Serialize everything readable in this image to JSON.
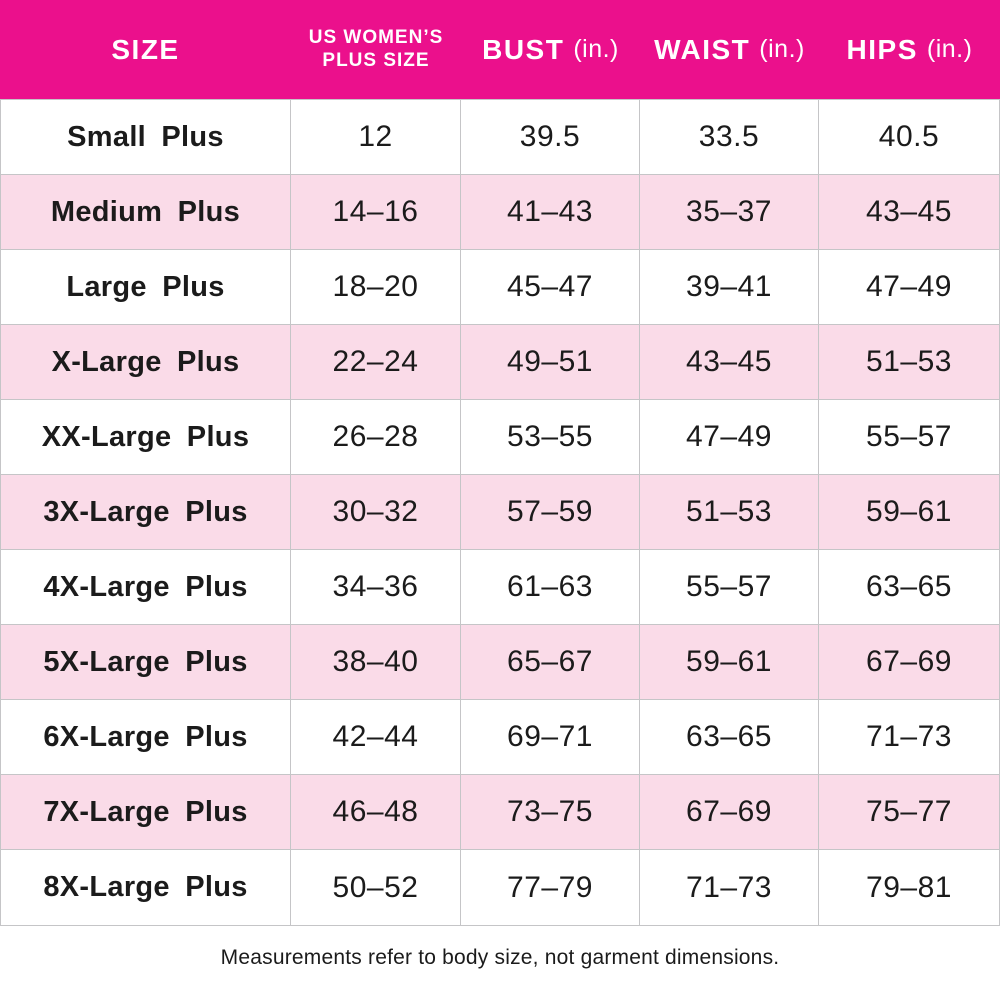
{
  "chart_data": {
    "type": "table",
    "columns": [
      {
        "title": "SIZE",
        "unit": ""
      },
      {
        "title": "US WOMEN’S PLUS SIZE",
        "unit": ""
      },
      {
        "title": "BUST",
        "unit": "(in.)"
      },
      {
        "title": "WAIST",
        "unit": "(in.)"
      },
      {
        "title": "HIPS",
        "unit": "(in.)"
      }
    ],
    "rows": [
      {
        "size": "Small Plus",
        "plus_size": "12",
        "bust": "39.5",
        "waist": "33.5",
        "hips": "40.5"
      },
      {
        "size": "Medium Plus",
        "plus_size": "14–16",
        "bust": "41–43",
        "waist": "35–37",
        "hips": "43–45"
      },
      {
        "size": "Large Plus",
        "plus_size": "18–20",
        "bust": "45–47",
        "waist": "39–41",
        "hips": "47–49"
      },
      {
        "size": "X-Large Plus",
        "plus_size": "22–24",
        "bust": "49–51",
        "waist": "43–45",
        "hips": "51–53"
      },
      {
        "size": "XX-Large Plus",
        "plus_size": "26–28",
        "bust": "53–55",
        "waist": "47–49",
        "hips": "55–57"
      },
      {
        "size": "3X-Large Plus",
        "plus_size": "30–32",
        "bust": "57–59",
        "waist": "51–53",
        "hips": "59–61"
      },
      {
        "size": "4X-Large Plus",
        "plus_size": "34–36",
        "bust": "61–63",
        "waist": "55–57",
        "hips": "63–65"
      },
      {
        "size": "5X-Large Plus",
        "plus_size": "38–40",
        "bust": "65–67",
        "waist": "59–61",
        "hips": "67–69"
      },
      {
        "size": "6X-Large Plus",
        "plus_size": "42–44",
        "bust": "69–71",
        "waist": "63–65",
        "hips": "71–73"
      },
      {
        "size": "7X-Large Plus",
        "plus_size": "46–48",
        "bust": "73–75",
        "waist": "67–69",
        "hips": "75–77"
      },
      {
        "size": "8X-Large Plus",
        "plus_size": "50–52",
        "bust": "77–79",
        "waist": "71–73",
        "hips": "79–81"
      }
    ],
    "footnote": "Measurements refer to body size, not garment dimensions."
  },
  "colors": {
    "header_bg": "#EB108C",
    "row_alt_bg": "#FADBE8",
    "grid_line": "#C5C5C7",
    "text_dark": "#1B1B1B",
    "header_text": "#FFFFFF"
  }
}
